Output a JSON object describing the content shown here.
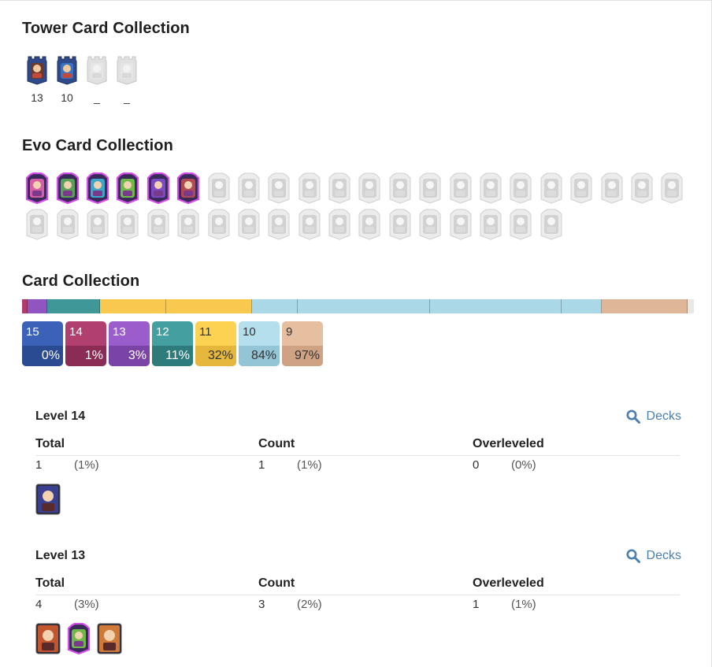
{
  "tower_section": {
    "title": "Tower Card Collection",
    "cards": [
      {
        "icon": "tower-princess-icon",
        "level": "13",
        "owned": true,
        "color": "#6b3a2a"
      },
      {
        "icon": "cannoneer-icon",
        "level": "10",
        "owned": true,
        "color": "#3a72c4"
      },
      {
        "icon": "dagger-duchess-icon",
        "level": "_",
        "owned": false,
        "color": "#cfcfcf"
      },
      {
        "icon": "royal-chef-icon",
        "level": "_",
        "owned": false,
        "color": "#cfcfcf"
      }
    ]
  },
  "evo_section": {
    "title": "Evo Card Collection",
    "owned_colors": [
      "#d45fa6",
      "#5aa05a",
      "#3ea6c9",
      "#6fb84a",
      "#7b4bc4",
      "#b24a56"
    ],
    "locked_count": 34
  },
  "collection_section": {
    "title": "Card Collection",
    "bar": [
      {
        "level": "15",
        "color": "#3d65b8",
        "share": 0.0
      },
      {
        "level": "14",
        "color": "#b13b6c",
        "share": 0.0085
      },
      {
        "level": "13",
        "color": "#9155c2",
        "share": 0.03
      },
      {
        "level": "12",
        "color": "#3f9797",
        "share": 0.08
      },
      {
        "level": "11",
        "color": "#f9c84e",
        "share": 0.1
      },
      {
        "level": "11",
        "color": "#f9c84e",
        "share": 0.13
      },
      {
        "level": "10",
        "color": "#abd8e6",
        "share": 0.07
      },
      {
        "level": "10",
        "color": "#abd8e6",
        "share": 0.2
      },
      {
        "level": "10",
        "color": "#abd8e6",
        "share": 0.2
      },
      {
        "level": "10",
        "color": "#abd8e6",
        "share": 0.06
      },
      {
        "level": "9",
        "color": "#e0b699",
        "share": 0.13
      },
      {
        "level": "",
        "color": "#e8e8e8",
        "share": 0.01
      }
    ],
    "chips": [
      {
        "level": "15",
        "percent": "0%",
        "top": "#3b62b8",
        "bottom": "#2a4b91",
        "text": "#ffffff"
      },
      {
        "level": "14",
        "percent": "1%",
        "top": "#b2406f",
        "bottom": "#8b2c55",
        "text": "#ffffff"
      },
      {
        "level": "13",
        "percent": "3%",
        "top": "#9b5dcb",
        "bottom": "#7a43a6",
        "text": "#ffffff"
      },
      {
        "level": "12",
        "percent": "11%",
        "top": "#44a0a0",
        "bottom": "#2e7b7b",
        "text": "#ffffff"
      },
      {
        "level": "11",
        "percent": "32%",
        "top": "#fbd252",
        "bottom": "#e6b73d",
        "text": "#333333"
      },
      {
        "level": "10",
        "percent": "84%",
        "top": "#b5dfec",
        "bottom": "#93c5d6",
        "text": "#333333"
      },
      {
        "level": "9",
        "percent": "97%",
        "top": "#e6bea0",
        "bottom": "#cfa283",
        "text": "#333333"
      }
    ]
  },
  "levels": [
    {
      "title": "Level 14",
      "decks_label": "Decks",
      "headers": {
        "total": "Total",
        "count": "Count",
        "overleveled": "Overleveled"
      },
      "total": "1",
      "total_pct": "(1%)",
      "count": "1",
      "count_pct": "(1%)",
      "over": "0",
      "over_pct": "(0%)",
      "cards": [
        {
          "icon": "musketeer-card-icon",
          "color": "#3b3f8f",
          "evo": false
        }
      ]
    },
    {
      "title": "Level 13",
      "decks_label": "Decks",
      "headers": {
        "total": "Total",
        "count": "Count",
        "overleveled": "Overleveled"
      },
      "total": "4",
      "total_pct": "(3%)",
      "count": "3",
      "count_pct": "(2%)",
      "over": "1",
      "over_pct": "(1%)",
      "cards": [
        {
          "icon": "valkyrie-card-icon",
          "color": "#c2562e",
          "evo": false
        },
        {
          "icon": "goblin-barrel-evo-card-icon",
          "color": "#6fb84a",
          "evo": true
        },
        {
          "icon": "barbarian-card-icon",
          "color": "#d07a3a",
          "evo": false
        }
      ]
    }
  ]
}
